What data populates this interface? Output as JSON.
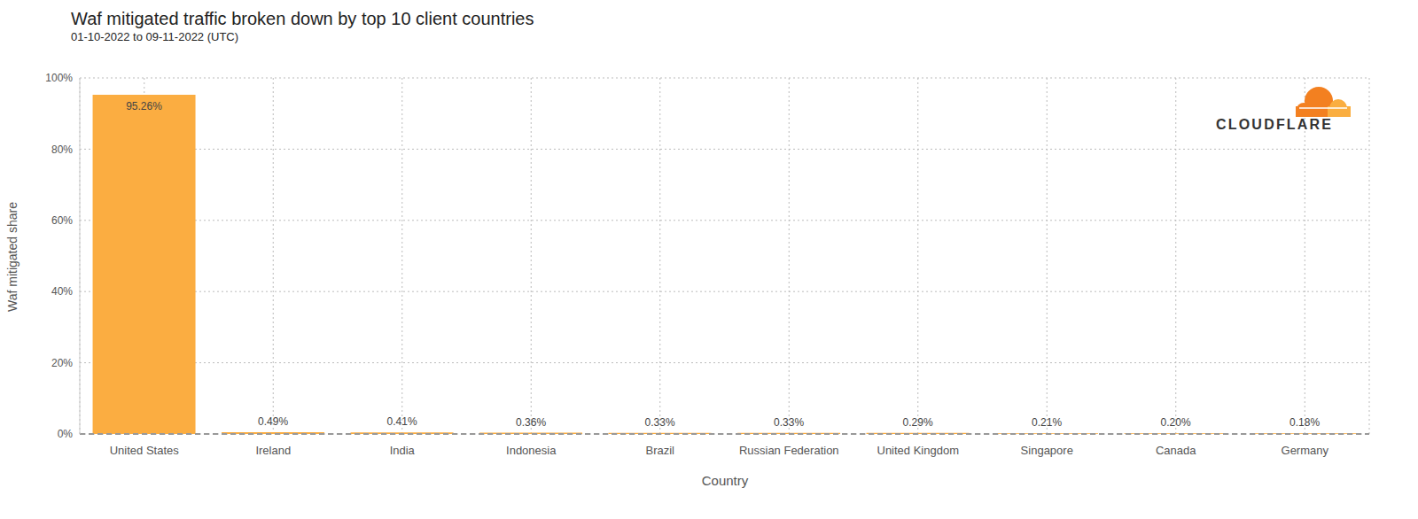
{
  "chart_data": {
    "type": "bar",
    "title": "Waf mitigated traffic broken down by top 10 client countries",
    "subtitle": "01-10-2022 to 09-11-2022 (UTC)",
    "x_label": "Country",
    "y_label": "Waf mitigated share",
    "logo_text": "CLOUDFLARE",
    "categories": [
      "United States",
      "Ireland",
      "India",
      "Indonesia",
      "Brazil",
      "Russian Federation",
      "United Kingdom",
      "Singapore",
      "Canada",
      "Germany"
    ],
    "values": [
      95.26,
      0.49,
      0.41,
      0.36,
      0.33,
      0.33,
      0.29,
      0.21,
      0.2,
      0.18
    ],
    "value_labels": [
      "95.26%",
      "0.49%",
      "0.41%",
      "0.36%",
      "0.33%",
      "0.33%",
      "0.29%",
      "0.21%",
      "0.20%",
      "0.18%"
    ],
    "color": "#fbad41",
    "ylim": [
      0,
      100
    ],
    "yticks": [
      {
        "value": 0,
        "label": "0%"
      },
      {
        "value": 20,
        "label": "20%"
      },
      {
        "value": 40,
        "label": "40%"
      },
      {
        "value": 60,
        "label": "60%"
      },
      {
        "value": 80,
        "label": "80%"
      },
      {
        "value": 100,
        "label": "100%"
      }
    ],
    "grid": true,
    "data_labels": true
  }
}
